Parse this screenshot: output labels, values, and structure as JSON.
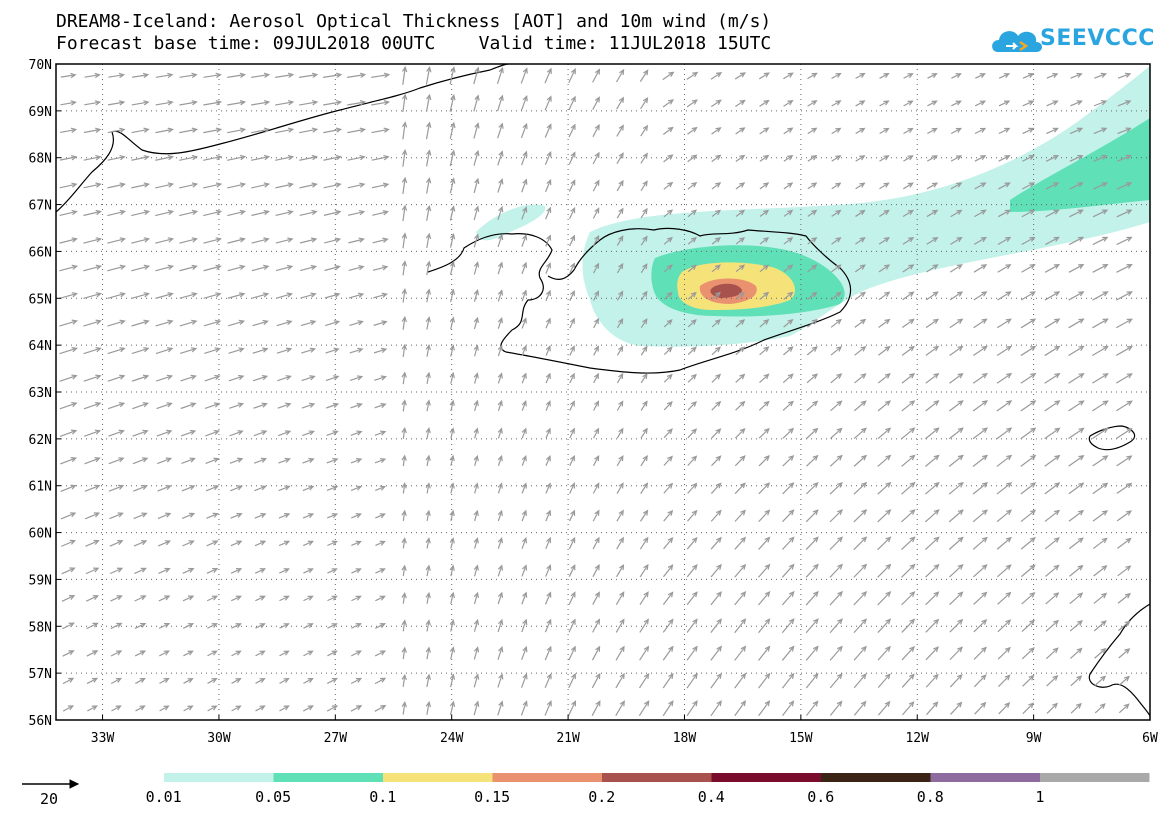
{
  "title_line1": "DREAM8-Iceland: Aerosol Optical Thickness [AOT] and 10m wind (m/s)",
  "title_line2": "Forecast base time: 09JUL2018 00UTC    Valid time: 11JUL2018 15UTC",
  "logo_text": "SEEVCCC",
  "logo_icon": "cloud-icon",
  "map": {
    "lat_labels": [
      "70N",
      "69N",
      "68N",
      "67N",
      "66N",
      "65N",
      "64N",
      "63N",
      "62N",
      "61N",
      "60N",
      "59N",
      "58N",
      "57N",
      "56N"
    ],
    "lon_labels": [
      "33W",
      "30W",
      "27W",
      "24W",
      "21W",
      "18W",
      "15W",
      "12W",
      "9W",
      "6W"
    ],
    "lat_range": [
      56,
      70
    ],
    "lon_range": [
      -34.2,
      -6
    ],
    "gridlines": true
  },
  "colorbar": {
    "labels": [
      "0.01",
      "0.05",
      "0.1",
      "0.15",
      "0.2",
      "0.4",
      "0.6",
      "0.8",
      "1"
    ],
    "colors": [
      "#c2f2ea",
      "#5fe0b6",
      "#f5e37a",
      "#ea9170",
      "#a8524d",
      "#7a0d2c",
      "#3b2415",
      "#8e6b9e",
      "#a9a9a9"
    ]
  },
  "wind_reference": {
    "value": "20"
  }
}
